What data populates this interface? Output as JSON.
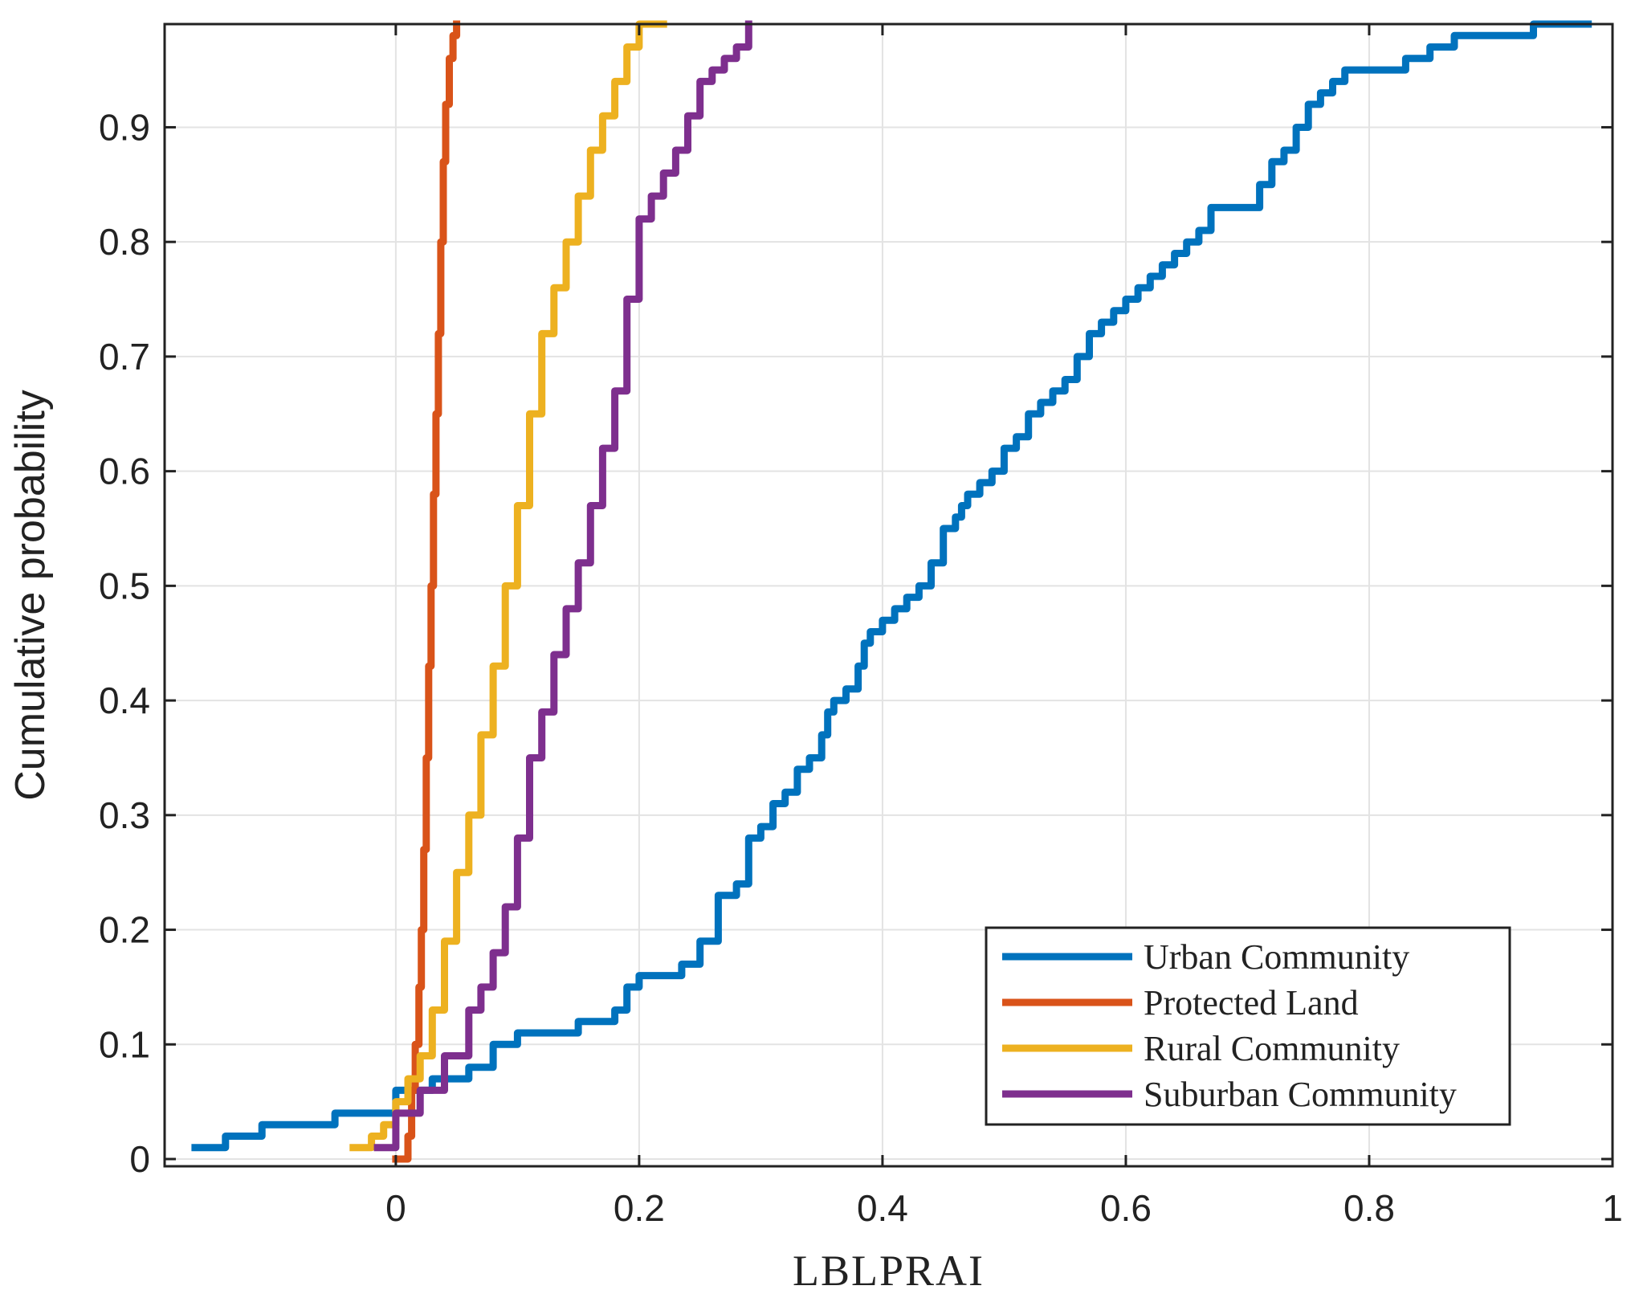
{
  "chart_data": {
    "type": "line",
    "title": "",
    "xlabel": "LBLPRAI",
    "ylabel": "Cumulative probability",
    "xlim": [
      -0.19,
      1.0
    ],
    "ylim": [
      0,
      0.99
    ],
    "xticks": [
      0,
      0.2,
      0.4,
      0.6,
      0.8,
      1
    ],
    "xtick_labels": [
      "0",
      "0.2",
      "0.4",
      "0.6",
      "0.8",
      "1"
    ],
    "yticks": [
      0,
      0.1,
      0.2,
      0.3,
      0.4,
      0.5,
      0.6,
      0.7,
      0.8,
      0.9
    ],
    "ytick_labels": [
      "0",
      "0.1",
      "0.2",
      "0.3",
      "0.4",
      "0.5",
      "0.6",
      "0.7",
      "0.8",
      "0.9"
    ],
    "grid": true,
    "legend_position": "bottom-right",
    "series": [
      {
        "name": "Urban Community",
        "color": "#0072BD",
        "x": [
          -0.165,
          -0.14,
          -0.11,
          -0.05,
          0.0,
          0.03,
          0.06,
          0.08,
          0.1,
          0.13,
          0.15,
          0.18,
          0.19,
          0.2,
          0.235,
          0.25,
          0.265,
          0.28,
          0.29,
          0.3,
          0.31,
          0.32,
          0.33,
          0.34,
          0.35,
          0.355,
          0.36,
          0.37,
          0.38,
          0.385,
          0.39,
          0.4,
          0.41,
          0.42,
          0.43,
          0.44,
          0.45,
          0.46,
          0.465,
          0.47,
          0.48,
          0.49,
          0.5,
          0.51,
          0.52,
          0.53,
          0.54,
          0.55,
          0.56,
          0.57,
          0.58,
          0.59,
          0.6,
          0.61,
          0.62,
          0.63,
          0.64,
          0.65,
          0.66,
          0.67,
          0.7,
          0.71,
          0.72,
          0.73,
          0.74,
          0.75,
          0.76,
          0.77,
          0.78,
          0.8,
          0.83,
          0.85,
          0.87,
          0.9,
          0.935,
          0.98
        ],
        "y": [
          0.01,
          0.02,
          0.03,
          0.04,
          0.06,
          0.07,
          0.08,
          0.1,
          0.11,
          0.11,
          0.12,
          0.13,
          0.15,
          0.16,
          0.17,
          0.19,
          0.23,
          0.24,
          0.28,
          0.29,
          0.31,
          0.32,
          0.34,
          0.35,
          0.37,
          0.39,
          0.4,
          0.41,
          0.43,
          0.45,
          0.46,
          0.47,
          0.48,
          0.49,
          0.5,
          0.52,
          0.55,
          0.56,
          0.57,
          0.58,
          0.59,
          0.6,
          0.62,
          0.63,
          0.65,
          0.66,
          0.67,
          0.68,
          0.7,
          0.72,
          0.73,
          0.74,
          0.75,
          0.76,
          0.77,
          0.78,
          0.79,
          0.8,
          0.81,
          0.83,
          0.83,
          0.85,
          0.87,
          0.88,
          0.9,
          0.92,
          0.93,
          0.94,
          0.95,
          0.95,
          0.96,
          0.97,
          0.98,
          0.98,
          0.99,
          0.99
        ]
      },
      {
        "name": "Protected Land",
        "color": "#D95319",
        "x": [
          0.0,
          0.01,
          0.013,
          0.016,
          0.019,
          0.021,
          0.023,
          0.025,
          0.027,
          0.029,
          0.031,
          0.033,
          0.035,
          0.037,
          0.039,
          0.041,
          0.044,
          0.047,
          0.05
        ],
        "y": [
          0.0,
          0.02,
          0.06,
          0.1,
          0.15,
          0.2,
          0.27,
          0.35,
          0.43,
          0.5,
          0.58,
          0.65,
          0.72,
          0.8,
          0.87,
          0.92,
          0.96,
          0.98,
          0.99
        ]
      },
      {
        "name": "Rural Community",
        "color": "#EDB120",
        "x": [
          -0.035,
          -0.02,
          -0.01,
          0.0,
          0.01,
          0.02,
          0.03,
          0.04,
          0.05,
          0.06,
          0.07,
          0.08,
          0.09,
          0.1,
          0.11,
          0.12,
          0.13,
          0.14,
          0.15,
          0.16,
          0.17,
          0.18,
          0.19,
          0.2,
          0.21,
          0.22
        ],
        "y": [
          0.01,
          0.02,
          0.03,
          0.05,
          0.07,
          0.09,
          0.13,
          0.19,
          0.25,
          0.3,
          0.37,
          0.43,
          0.5,
          0.57,
          0.65,
          0.72,
          0.76,
          0.8,
          0.84,
          0.88,
          0.91,
          0.94,
          0.97,
          0.99,
          0.99,
          0.99
        ]
      },
      {
        "name": "Suburban Community",
        "color": "#7E2F8E",
        "x": [
          -0.015,
          0.0,
          0.02,
          0.04,
          0.06,
          0.07,
          0.08,
          0.09,
          0.1,
          0.11,
          0.12,
          0.13,
          0.14,
          0.15,
          0.16,
          0.17,
          0.18,
          0.19,
          0.2,
          0.21,
          0.22,
          0.23,
          0.24,
          0.25,
          0.26,
          0.27,
          0.28,
          0.29
        ],
        "y": [
          0.01,
          0.04,
          0.06,
          0.09,
          0.13,
          0.15,
          0.18,
          0.22,
          0.28,
          0.35,
          0.39,
          0.44,
          0.48,
          0.52,
          0.57,
          0.62,
          0.67,
          0.75,
          0.82,
          0.84,
          0.86,
          0.88,
          0.91,
          0.94,
          0.95,
          0.96,
          0.97,
          0.99
        ]
      }
    ]
  }
}
